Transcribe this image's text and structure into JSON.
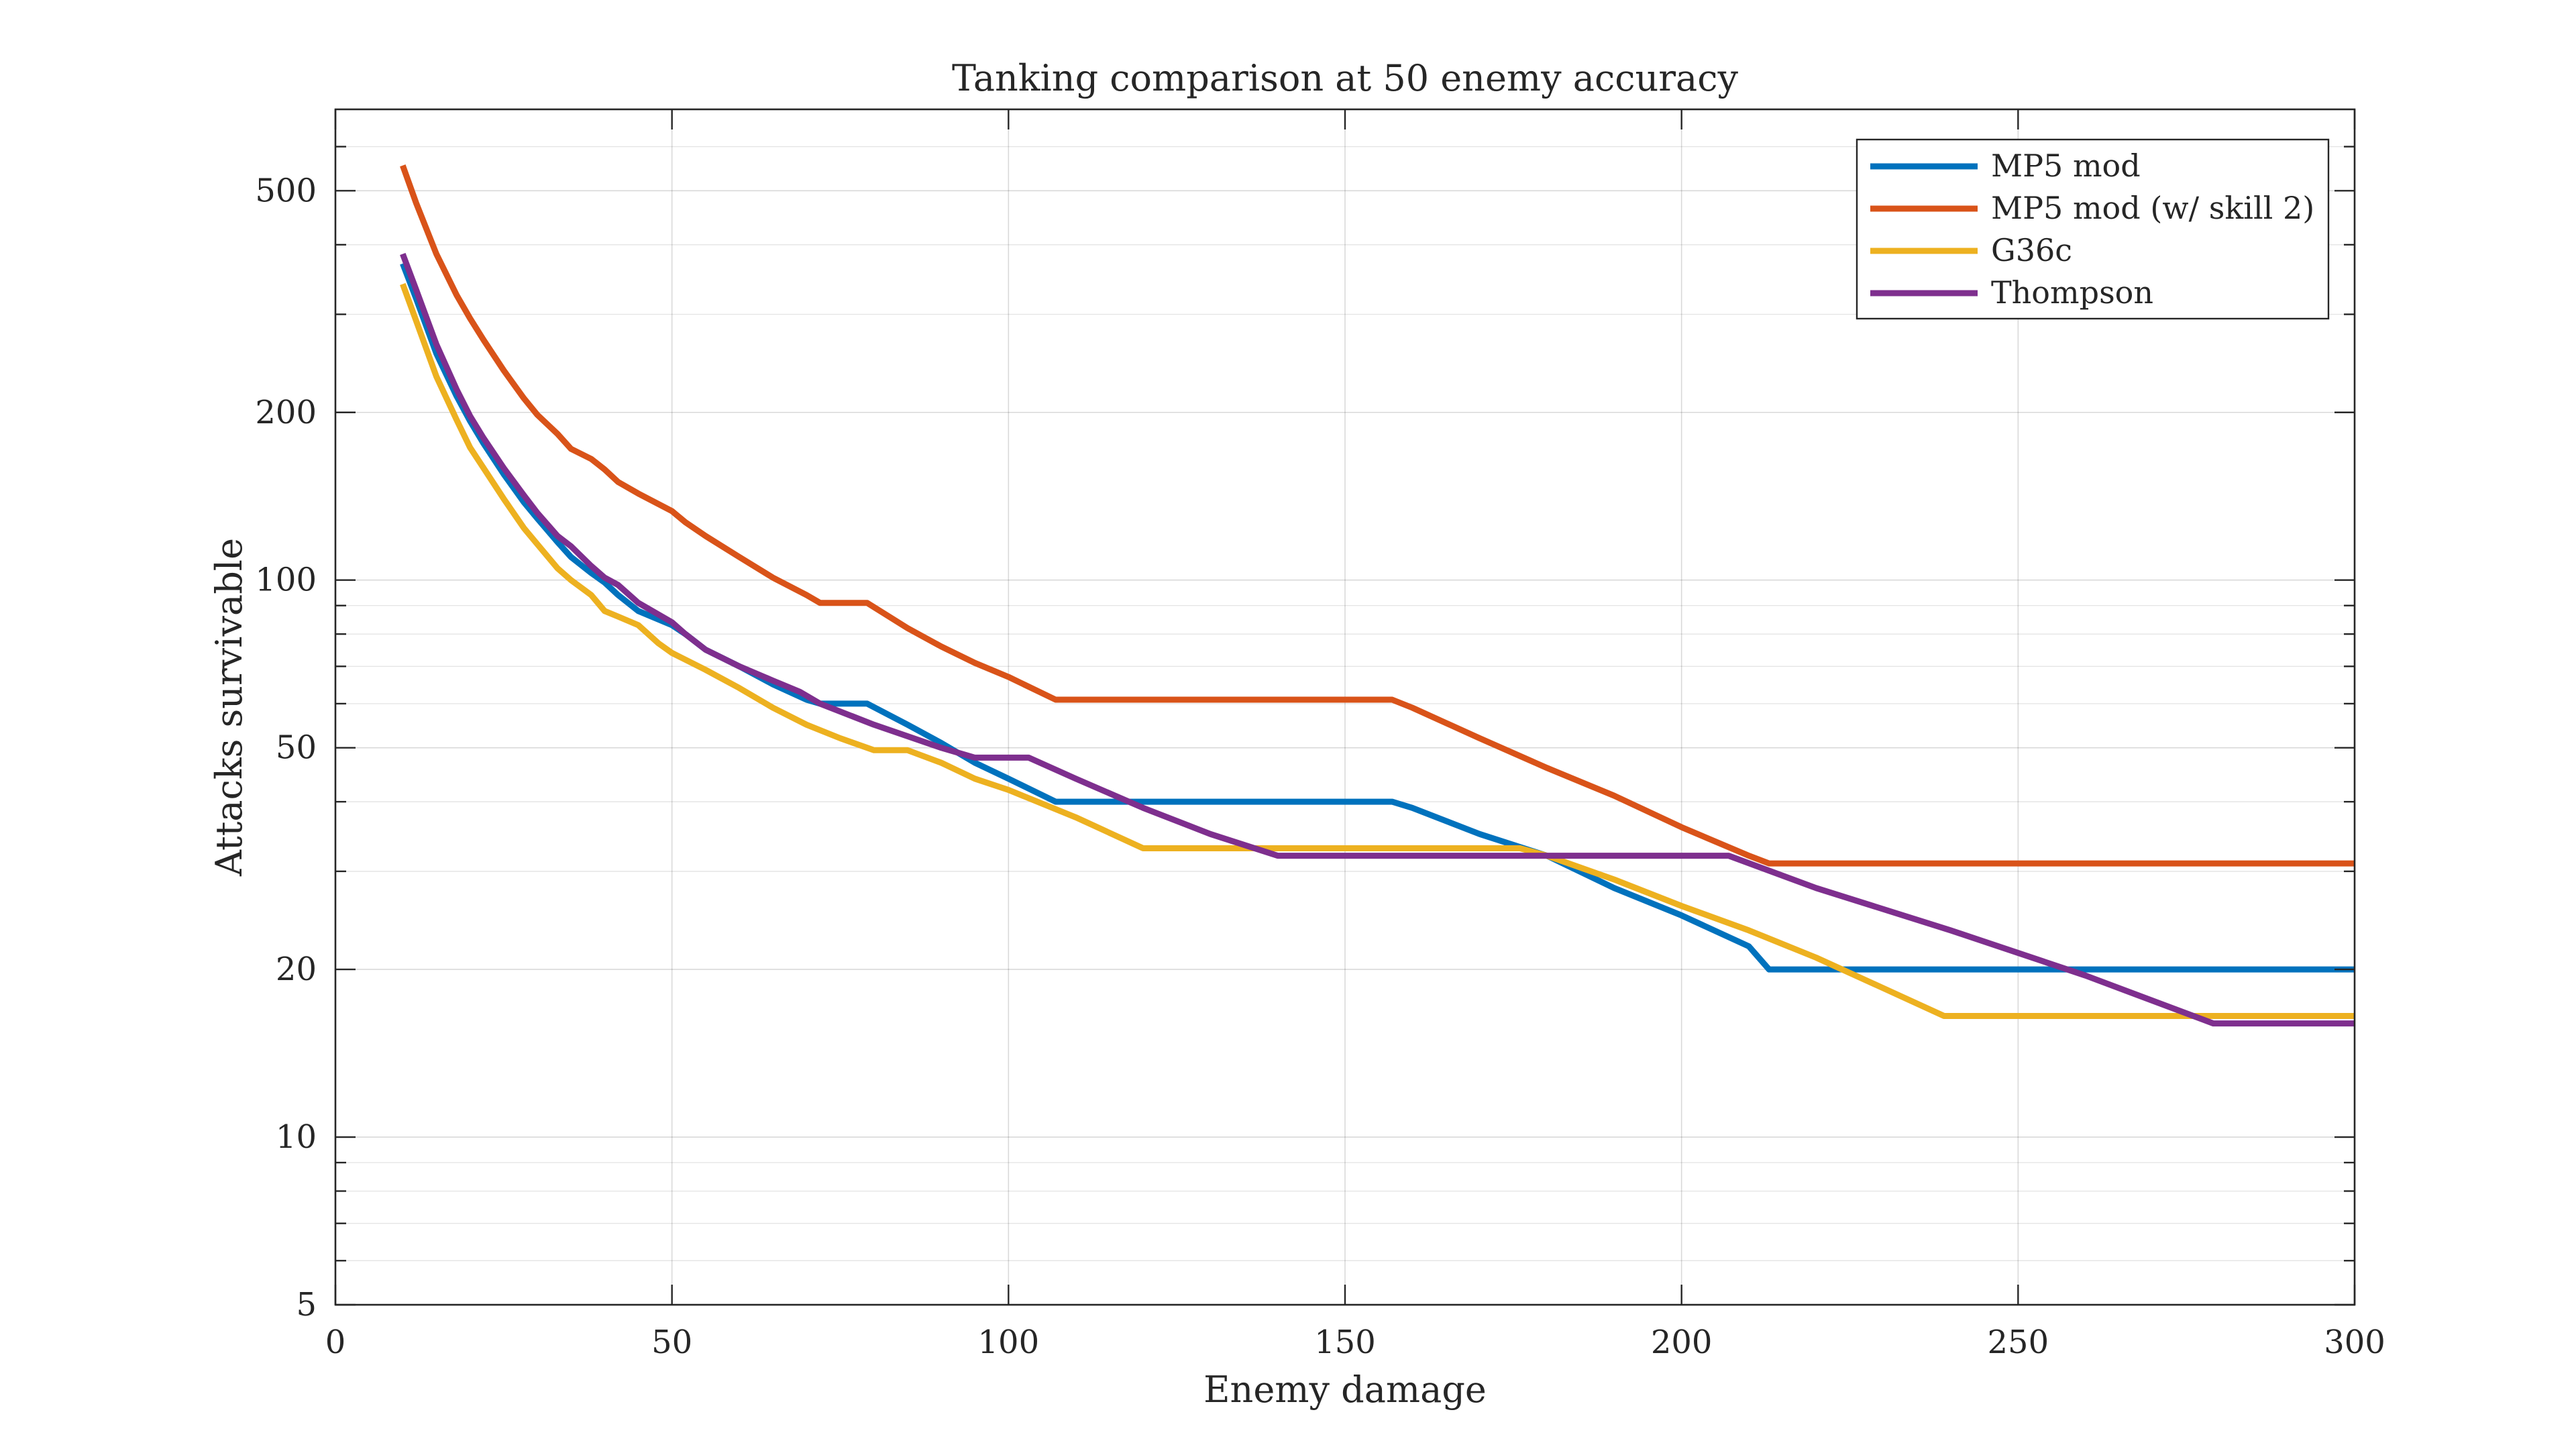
{
  "chart_data": {
    "type": "line",
    "title": "Tanking comparison at 50 enemy accuracy",
    "xlabel": "Enemy damage",
    "ylabel": "Attacks survivable",
    "xlim": [
      0,
      300
    ],
    "ylim": [
      5,
      700
    ],
    "yscale": "log",
    "grid": true,
    "legend_position": "top-right",
    "xticks": [
      0,
      50,
      100,
      150,
      200,
      250,
      300
    ],
    "xtick_labels": [
      "0",
      "50",
      "100",
      "150",
      "200",
      "250",
      "300"
    ],
    "yticks": [
      5,
      10,
      20,
      50,
      100,
      200,
      500
    ],
    "ytick_labels": [
      "5",
      "10",
      "20",
      "50",
      "100",
      "200",
      "500"
    ],
    "series": [
      {
        "name": "MP5 mod",
        "color": "#0072BD",
        "x": [
          10,
          12,
          15,
          18,
          20,
          22,
          25,
          28,
          30,
          33,
          35,
          38,
          40,
          42,
          45,
          50,
          52,
          55,
          60,
          65,
          70,
          72,
          75,
          79,
          85,
          90,
          95,
          100,
          107,
          110,
          120,
          130,
          140,
          150,
          157,
          160,
          170,
          180,
          190,
          200,
          210,
          213,
          220,
          250,
          300
        ],
        "y": [
          370,
          320,
          255,
          214,
          193,
          176,
          155,
          138,
          129,
          117,
          110,
          103,
          99,
          94,
          88,
          83,
          80,
          75,
          70,
          65,
          61,
          60,
          60,
          60,
          55,
          51,
          47,
          44,
          40,
          40,
          40,
          40,
          40,
          40,
          40,
          39,
          35,
          32,
          28,
          25,
          22,
          20,
          20,
          20,
          20
        ]
      },
      {
        "name": "MP5 mod (w/ skill 2)",
        "color": "#D95319",
        "x": [
          10,
          12,
          15,
          18,
          20,
          22,
          25,
          28,
          30,
          33,
          35,
          38,
          40,
          42,
          45,
          50,
          52,
          55,
          60,
          65,
          70,
          72,
          75,
          79,
          85,
          90,
          95,
          100,
          107,
          110,
          120,
          130,
          140,
          150,
          157,
          160,
          170,
          180,
          190,
          200,
          210,
          213,
          220,
          250,
          300
        ],
        "y": [
          555,
          475,
          385,
          325,
          295,
          270,
          238,
          212,
          198,
          183,
          172,
          165,
          158,
          150,
          143,
          133,
          127,
          120,
          110,
          101,
          94,
          91,
          91,
          91,
          82,
          76,
          71,
          67,
          61,
          61,
          61,
          61,
          61,
          61,
          61,
          59,
          52,
          46,
          41,
          36,
          32,
          31,
          31,
          31,
          31
        ]
      },
      {
        "name": "G36c",
        "color": "#EDB120",
        "x": [
          10,
          12,
          15,
          18,
          20,
          22,
          25,
          28,
          30,
          33,
          35,
          38,
          40,
          42,
          45,
          48,
          50,
          55,
          60,
          65,
          70,
          75,
          80,
          85,
          90,
          95,
          100,
          110,
          120,
          130,
          140,
          150,
          160,
          176,
          180,
          190,
          200,
          210,
          220,
          230,
          239,
          250,
          300
        ],
        "y": [
          340,
          292,
          232,
          194,
          173,
          159,
          140,
          124,
          116,
          105,
          100,
          94,
          88,
          86,
          83,
          77,
          74,
          69,
          64,
          59,
          55,
          52,
          49.5,
          49.5,
          47,
          44,
          42,
          37.5,
          33,
          33,
          33,
          33,
          33,
          33,
          32,
          29,
          26,
          23.5,
          21,
          18.5,
          16.5,
          16.5,
          16.5
        ]
      },
      {
        "name": "Thompson",
        "color": "#7E2F8E",
        "x": [
          10,
          12,
          15,
          18,
          20,
          22,
          25,
          28,
          30,
          33,
          35,
          38,
          40,
          42,
          45,
          50,
          52,
          55,
          60,
          65,
          69,
          72,
          80,
          90,
          95,
          103,
          110,
          120,
          130,
          140,
          150,
          160,
          170,
          180,
          190,
          207,
          220,
          240,
          260,
          279,
          300
        ],
        "y": [
          385,
          332,
          265,
          220,
          197,
          180,
          159,
          142,
          132,
          120,
          115,
          106,
          101,
          98,
          91,
          84,
          80,
          75,
          70,
          66,
          63,
          60,
          55,
          50,
          48,
          48,
          44,
          39,
          35,
          32,
          32,
          32,
          32,
          32,
          32,
          32,
          28,
          23.5,
          19.5,
          16,
          16
        ]
      }
    ]
  }
}
